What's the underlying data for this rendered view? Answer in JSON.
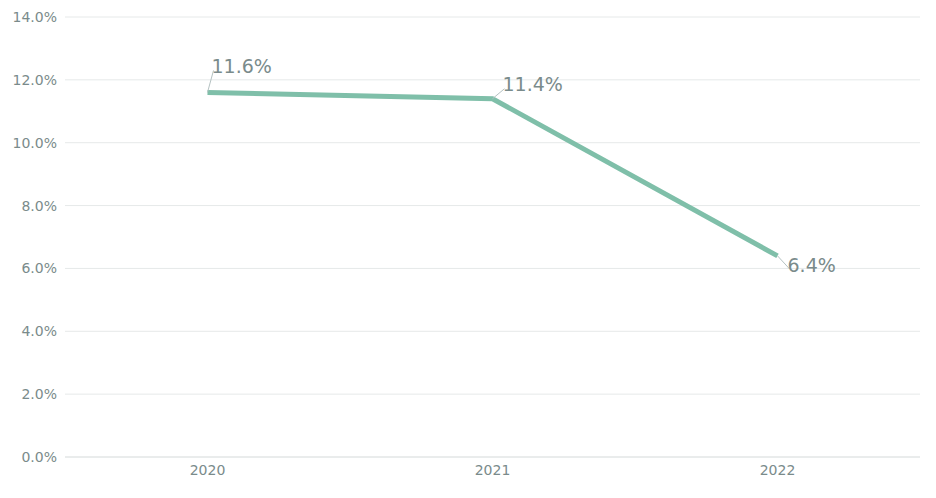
{
  "chart_data": {
    "type": "line",
    "categories": [
      "2020",
      "2021",
      "2022"
    ],
    "values": [
      11.6,
      11.4,
      6.4
    ],
    "value_labels": [
      "11.6%",
      "11.4%",
      "6.4%"
    ],
    "color": "#7fbfa9",
    "ylim": [
      0,
      14
    ],
    "yticks": [
      {
        "value": 0,
        "label": "0.0%"
      },
      {
        "value": 2,
        "label": "2.0%"
      },
      {
        "value": 4,
        "label": "4.0%"
      },
      {
        "value": 6,
        "label": "6.0%"
      },
      {
        "value": 8,
        "label": "8.0%"
      },
      {
        "value": 10,
        "label": "10.0%"
      },
      {
        "value": 12,
        "label": "12.0%"
      },
      {
        "value": 14,
        "label": "14.0%"
      }
    ],
    "grid": true,
    "data_labels": true
  }
}
